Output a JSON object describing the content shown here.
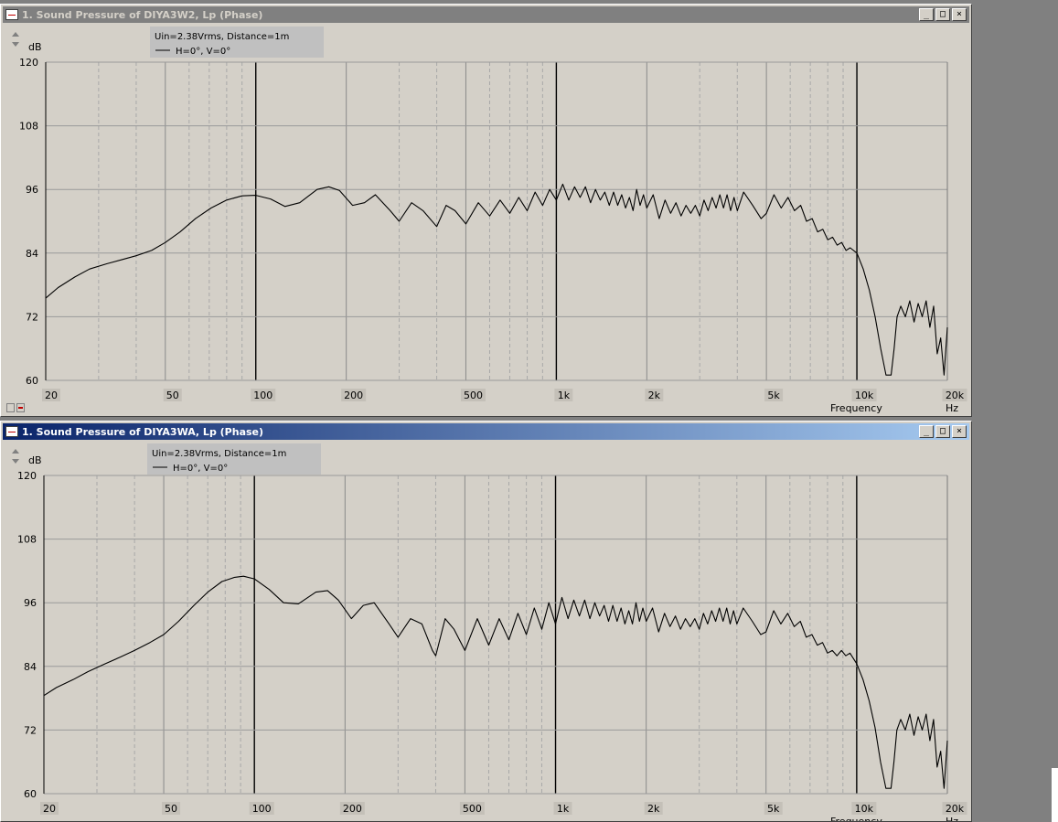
{
  "windows": [
    {
      "title": "1. Sound Pressure of DIYA3W2, Lp (Phase)",
      "active": false,
      "window_buttons": [
        "_",
        "□",
        "×"
      ],
      "legend": {
        "line1": "Uin=2.38Vrms, Distance=1m",
        "series_label": "H=0°, V=0°"
      }
    },
    {
      "title": "1. Sound Pressure of DIYA3WA, Lp (Phase)",
      "active": true,
      "window_buttons": [
        "_",
        "□",
        "×"
      ],
      "legend": {
        "line1": "Uin=2.38Vrms, Distance=1m",
        "series_label": "H=0°, V=0°"
      }
    }
  ],
  "chart_data": [
    {
      "type": "line",
      "title": "1. Sound Pressure of DIYA3W2, Lp (Phase)",
      "xlabel": "Frequency",
      "xunit": "Hz",
      "yunit": "dB",
      "xscale": "log",
      "xlim": [
        20,
        20000
      ],
      "ylim": [
        60,
        120
      ],
      "yticks": [
        60,
        72,
        84,
        96,
        108,
        120
      ],
      "xticks": [
        20,
        50,
        100,
        200,
        500,
        1000,
        2000,
        5000,
        10000,
        20000
      ],
      "xtick_labels": [
        "20",
        "50",
        "100",
        "200",
        "500",
        "1k",
        "2k",
        "5k",
        "10k",
        "20k"
      ],
      "grid": true,
      "legend_position": "top-left",
      "line_color": "#000000",
      "series": [
        {
          "name": "H=0°, V=0°",
          "x": [
            20,
            22,
            25,
            28,
            32,
            36,
            40,
            45,
            50,
            56,
            63,
            71,
            80,
            90,
            100,
            112,
            125,
            140,
            160,
            175,
            190,
            210,
            230,
            250,
            280,
            300,
            330,
            360,
            400,
            430,
            460,
            500,
            550,
            600,
            650,
            700,
            750,
            800,
            850,
            900,
            950,
            1000,
            1050,
            1100,
            1150,
            1200,
            1250,
            1300,
            1350,
            1400,
            1450,
            1500,
            1550,
            1600,
            1650,
            1700,
            1750,
            1800,
            1850,
            1900,
            1950,
            2000,
            2100,
            2200,
            2300,
            2400,
            2500,
            2600,
            2700,
            2800,
            2900,
            3000,
            3100,
            3200,
            3300,
            3400,
            3500,
            3600,
            3700,
            3800,
            3900,
            4000,
            4200,
            4500,
            4800,
            5000,
            5300,
            5600,
            5900,
            6200,
            6500,
            6800,
            7100,
            7400,
            7700,
            8000,
            8300,
            8600,
            8900,
            9200,
            9500,
            10000,
            10500,
            11000,
            11500,
            12000,
            12500,
            13000,
            13300,
            13600,
            14000,
            14500,
            15000,
            15500,
            16000,
            16500,
            17000,
            17500,
            18000,
            18500,
            19000,
            19500,
            20000
          ],
          "y": [
            75.5,
            77.5,
            79.5,
            81,
            82,
            82.8,
            83.5,
            84.5,
            86,
            88,
            90.5,
            92.5,
            94,
            94.8,
            94.9,
            94.2,
            92.8,
            93.5,
            96,
            96.5,
            95.8,
            93,
            93.5,
            95,
            92,
            90,
            93.5,
            92,
            89,
            93,
            92,
            89.5,
            93.5,
            91,
            94,
            91.5,
            94.5,
            92,
            95.5,
            93,
            96,
            94,
            97,
            94,
            96.5,
            94.5,
            96.5,
            93.5,
            96,
            94,
            95.5,
            93,
            95.5,
            93,
            95,
            92.5,
            94.5,
            92,
            96,
            93,
            95,
            92.5,
            95,
            90.5,
            94,
            91.5,
            93.5,
            91,
            93,
            91.5,
            93,
            91,
            94,
            92,
            94.5,
            92.5,
            95,
            92.5,
            95,
            92,
            94.5,
            92,
            95.5,
            93,
            90.5,
            91.5,
            95,
            92.5,
            94.5,
            92,
            93,
            90,
            90.5,
            88,
            88.5,
            86.5,
            87,
            85.5,
            86,
            84.5,
            85,
            84,
            81,
            77,
            72,
            66,
            61,
            61,
            66,
            72,
            74,
            72,
            75,
            71,
            74.5,
            72,
            75,
            70,
            74,
            65,
            68,
            61,
            70
          ]
        }
      ]
    },
    {
      "type": "line",
      "title": "1. Sound Pressure of DIYA3WA, Lp (Phase)",
      "xlabel": "Frequency",
      "xunit": "Hz",
      "yunit": "dB",
      "xscale": "log",
      "xlim": [
        20,
        20000
      ],
      "ylim": [
        60,
        120
      ],
      "yticks": [
        60,
        72,
        84,
        96,
        108,
        120
      ],
      "xticks": [
        20,
        50,
        100,
        200,
        500,
        1000,
        2000,
        5000,
        10000,
        20000
      ],
      "xtick_labels": [
        "20",
        "50",
        "100",
        "200",
        "500",
        "1k",
        "2k",
        "5k",
        "10k",
        "20k"
      ],
      "grid": true,
      "legend_position": "top-left",
      "line_color": "#000000",
      "series": [
        {
          "name": "H=0°, V=0°",
          "x": [
            20,
            22,
            25,
            28,
            32,
            36,
            40,
            45,
            50,
            56,
            63,
            70,
            78,
            86,
            92,
            100,
            112,
            125,
            140,
            160,
            175,
            190,
            210,
            230,
            250,
            280,
            300,
            330,
            360,
            390,
            400,
            430,
            460,
            500,
            550,
            600,
            650,
            700,
            750,
            800,
            850,
            900,
            950,
            1000,
            1050,
            1100,
            1150,
            1200,
            1250,
            1300,
            1350,
            1400,
            1450,
            1500,
            1550,
            1600,
            1650,
            1700,
            1750,
            1800,
            1850,
            1900,
            1950,
            2000,
            2100,
            2200,
            2300,
            2400,
            2500,
            2600,
            2700,
            2800,
            2900,
            3000,
            3100,
            3200,
            3300,
            3400,
            3500,
            3600,
            3700,
            3800,
            3900,
            4000,
            4200,
            4500,
            4800,
            5000,
            5300,
            5600,
            5900,
            6200,
            6500,
            6800,
            7100,
            7400,
            7700,
            8000,
            8300,
            8600,
            8900,
            9200,
            9500,
            10000,
            10500,
            11000,
            11500,
            12000,
            12500,
            13000,
            13300,
            13600,
            14000,
            14500,
            15000,
            15500,
            16000,
            16500,
            17000,
            17500,
            18000,
            18500,
            19000,
            19500,
            20000
          ],
          "y": [
            78.5,
            80,
            81.5,
            83,
            84.5,
            85.8,
            87,
            88.5,
            90,
            92.5,
            95.5,
            98,
            100,
            100.8,
            101,
            100.5,
            98.5,
            96,
            95.8,
            98,
            98.3,
            96.5,
            93,
            95.5,
            96,
            92,
            89.5,
            93,
            92,
            87,
            86,
            93,
            91,
            87,
            93,
            88,
            93,
            89,
            94,
            90,
            95,
            91,
            96,
            92,
            97,
            93,
            96.5,
            93.5,
            96.5,
            93,
            96,
            93.5,
            95.5,
            92.5,
            95.5,
            92.5,
            95,
            92,
            94.5,
            92,
            96,
            92.5,
            95,
            92.5,
            95,
            90.5,
            94,
            91.5,
            93.5,
            91,
            93,
            91.5,
            93,
            91,
            94,
            92,
            94.5,
            92.5,
            95,
            92.5,
            95,
            92,
            94.5,
            92,
            95,
            92.5,
            90,
            90.5,
            94.5,
            92,
            94,
            91.5,
            92.5,
            89.5,
            90,
            88,
            88.5,
            86.5,
            87,
            86,
            87,
            86,
            86.5,
            84.5,
            81.5,
            77.5,
            72.5,
            66,
            61,
            61,
            66,
            72,
            74,
            72,
            75,
            71,
            74.5,
            72,
            75,
            70,
            74,
            65,
            68,
            61,
            70
          ]
        }
      ]
    }
  ]
}
